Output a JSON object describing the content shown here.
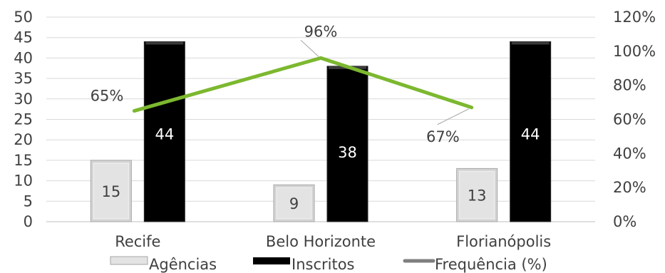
{
  "chart_data": {
    "type": "bar",
    "categories": [
      "Recife",
      "Belo Horizonte",
      "Florianópolis"
    ],
    "series": [
      {
        "name": "Agências",
        "kind": "bar",
        "axis": "left",
        "values": [
          15,
          9,
          13
        ],
        "color": "#d9d9d9"
      },
      {
        "name": "Inscritos",
        "kind": "bar",
        "axis": "left",
        "values": [
          44,
          38,
          44
        ],
        "color": "#000000"
      },
      {
        "name": "Frequência (%)",
        "kind": "line",
        "axis": "right",
        "values": [
          65,
          96,
          67
        ],
        "color": "#7cb82f"
      }
    ],
    "y_left": {
      "min": 0,
      "max": 50,
      "step": 5,
      "ticks": [
        "0",
        "5",
        "10",
        "15",
        "20",
        "25",
        "30",
        "35",
        "40",
        "45",
        "50"
      ]
    },
    "y_right": {
      "min": 0,
      "max": 120,
      "step": 20,
      "ticks": [
        "0%",
        "20%",
        "40%",
        "60%",
        "80%",
        "100%",
        "120%"
      ]
    },
    "data_labels": {
      "Agências": [
        "15",
        "9",
        "13"
      ],
      "Inscritos": [
        "44",
        "38",
        "44"
      ],
      "Frequência (%)": [
        "65%",
        "96%",
        "67%"
      ]
    },
    "legend": {
      "position": "bottom",
      "items": [
        "Agências",
        "Inscritos",
        "Frequência (%)"
      ]
    },
    "grid": true,
    "title": "",
    "xlabel": "",
    "ylabel": ""
  }
}
